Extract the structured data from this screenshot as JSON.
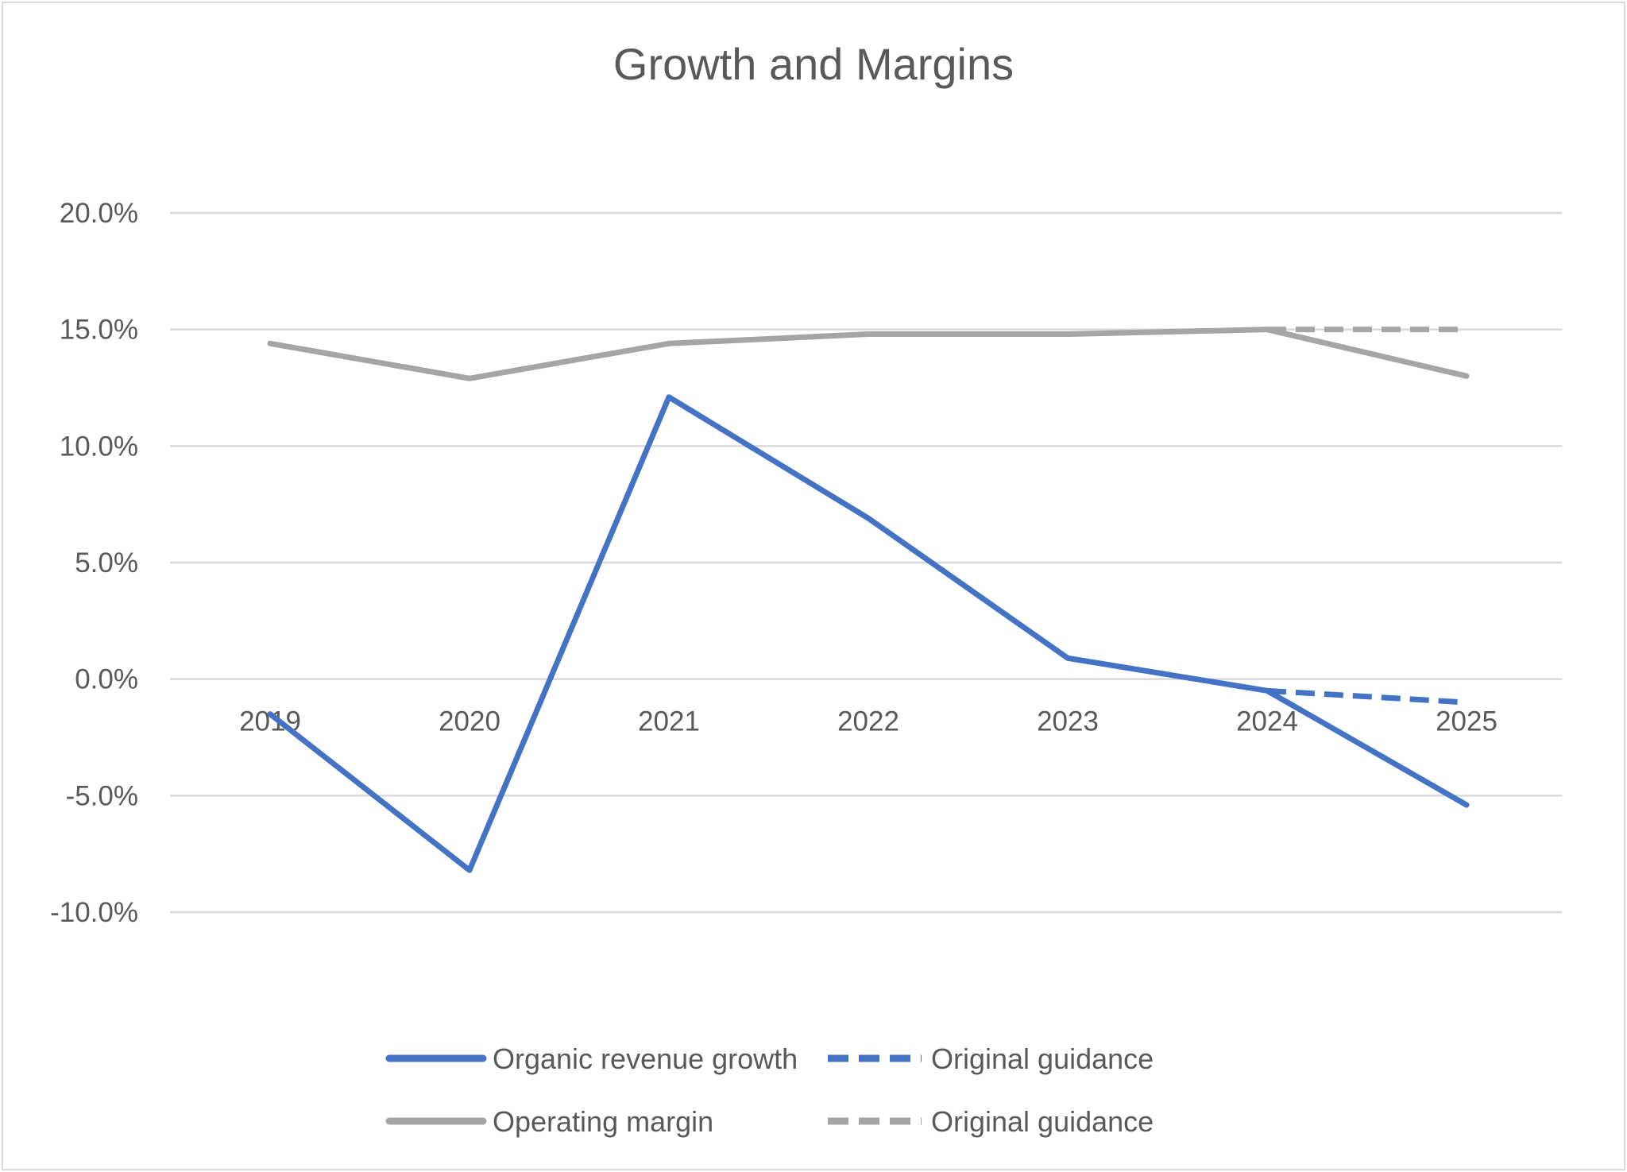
{
  "chart_data": {
    "type": "line",
    "title": "Growth and Margins",
    "xlabel": "",
    "ylabel": "",
    "categories": [
      "2019",
      "2020",
      "2021",
      "2022",
      "2023",
      "2024",
      "2025"
    ],
    "ylim": [
      -0.1,
      0.2
    ],
    "ytick_values": [
      0.2,
      0.15,
      0.1,
      0.05,
      0.0,
      -0.05,
      -0.1
    ],
    "ytick_labels": [
      "20.0%",
      "15.0%",
      "10.0%",
      "5.0%",
      "0.0%",
      "-5.0%",
      "-10.0%"
    ],
    "grid": true,
    "legend_position": "bottom",
    "series": [
      {
        "name": "Organic revenue growth",
        "color": "#4472c4",
        "style": "solid",
        "values": [
          -0.015,
          -0.082,
          0.121,
          0.069,
          0.009,
          -0.005,
          -0.054
        ]
      },
      {
        "name": "Original guidance",
        "color": "#4472c4",
        "style": "dashed",
        "values": [
          null,
          null,
          null,
          null,
          null,
          -0.005,
          -0.01
        ]
      },
      {
        "name": "Operating margin",
        "color": "#a5a5a5",
        "style": "solid",
        "values": [
          0.144,
          0.129,
          0.144,
          0.148,
          0.148,
          0.15,
          0.13
        ]
      },
      {
        "name": "Original guidance",
        "color": "#a5a5a5",
        "style": "dashed",
        "values": [
          null,
          null,
          null,
          null,
          null,
          0.15,
          0.15
        ]
      }
    ]
  }
}
